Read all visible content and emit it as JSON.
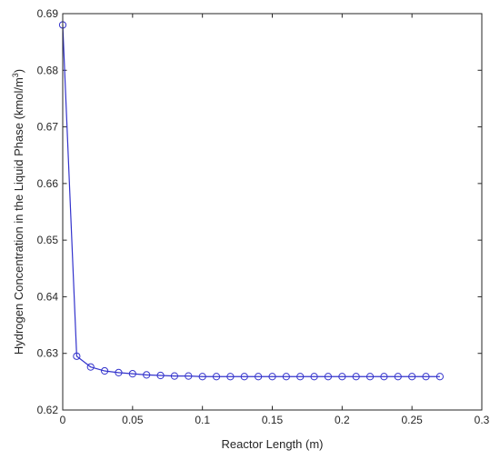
{
  "chart_data": {
    "type": "line",
    "xlabel": "Reactor Length (m)",
    "ylabel_main": "Hydrogen Concentration in the Liquid Phase (kmol/m",
    "ylabel_sup": "3",
    "ylabel_end": ")",
    "xlim": [
      0,
      0.3
    ],
    "ylim": [
      0.62,
      0.69
    ],
    "xticks": [
      "0",
      "0.05",
      "0.1",
      "0.15",
      "0.2",
      "0.25",
      "0.3"
    ],
    "yticks": [
      "0.62",
      "0.63",
      "0.64",
      "0.65",
      "0.66",
      "0.67",
      "0.68",
      "0.69"
    ],
    "grid": false,
    "legend": false,
    "line_color": "#3333cc",
    "marker": "circle",
    "series": [
      {
        "x": [
          0,
          0.01,
          0.02,
          0.03,
          0.04,
          0.05,
          0.06,
          0.07,
          0.08,
          0.09,
          0.1,
          0.11,
          0.12,
          0.13,
          0.14,
          0.15,
          0.16,
          0.17,
          0.18,
          0.19,
          0.2,
          0.21,
          0.22,
          0.23,
          0.24,
          0.25,
          0.26,
          0.27
        ],
        "values": [
          0.688,
          0.6295,
          0.6276,
          0.6269,
          0.6266,
          0.6264,
          0.6262,
          0.6261,
          0.626,
          0.626,
          0.6259,
          0.6259,
          0.6259,
          0.6259,
          0.6259,
          0.6259,
          0.6259,
          0.6259,
          0.6259,
          0.6259,
          0.6259,
          0.6259,
          0.6259,
          0.6259,
          0.6259,
          0.6259,
          0.6259,
          0.6259
        ]
      }
    ]
  }
}
